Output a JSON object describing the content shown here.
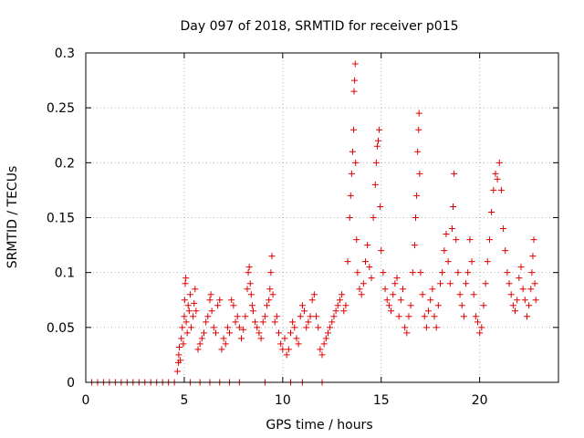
{
  "chart_data": {
    "type": "scatter",
    "title": "Day 097 of 2018, SRMTID for receiver p015",
    "xlabel": "GPS time / hours",
    "ylabel": "SRMTID / TECUs",
    "xlim": [
      0,
      24
    ],
    "ylim": [
      0,
      0.3
    ],
    "xticks": [
      0,
      5,
      10,
      15,
      20
    ],
    "xtick_labels": [
      "0",
      "5",
      "10",
      "15",
      "20"
    ],
    "yticks": [
      0,
      0.05,
      0.1,
      0.15,
      0.2,
      0.25,
      0.3
    ],
    "ytick_labels": [
      "0",
      "0.05",
      "0.1",
      "0.15",
      "0.2",
      "0.25",
      "0.3"
    ],
    "grid": true,
    "marker": "+",
    "color": "#e00000",
    "series": [
      {
        "name": "SRMTID",
        "points": [
          [
            0.3,
            0
          ],
          [
            0.6,
            0
          ],
          [
            0.9,
            0
          ],
          [
            1.2,
            0
          ],
          [
            1.5,
            0
          ],
          [
            1.8,
            0
          ],
          [
            2.1,
            0
          ],
          [
            2.4,
            0
          ],
          [
            2.7,
            0
          ],
          [
            3.0,
            0
          ],
          [
            3.3,
            0
          ],
          [
            3.6,
            0
          ],
          [
            3.9,
            0
          ],
          [
            4.2,
            0
          ],
          [
            4.5,
            0
          ],
          [
            5.3,
            0
          ],
          [
            5.8,
            0
          ],
          [
            6.3,
            0
          ],
          [
            6.8,
            0
          ],
          [
            7.3,
            0
          ],
          [
            7.8,
            0
          ],
          [
            9.1,
            0
          ],
          [
            10.4,
            0
          ],
          [
            11.0,
            0
          ],
          [
            12.0,
            0
          ],
          [
            4.65,
            0.01
          ],
          [
            4.7,
            0.018
          ],
          [
            4.72,
            0.025
          ],
          [
            4.75,
            0.032
          ],
          [
            4.8,
            0.02
          ],
          [
            4.85,
            0.04
          ],
          [
            4.9,
            0.05
          ],
          [
            4.95,
            0.035
          ],
          [
            5.0,
            0.06
          ],
          [
            5.02,
            0.075
          ],
          [
            5.05,
            0.09
          ],
          [
            5.08,
            0.095
          ],
          [
            5.1,
            0.055
          ],
          [
            5.15,
            0.045
          ],
          [
            5.2,
            0.07
          ],
          [
            5.25,
            0.065
          ],
          [
            5.3,
            0.08
          ],
          [
            5.35,
            0.05
          ],
          [
            5.45,
            0.06
          ],
          [
            5.5,
            0.072
          ],
          [
            5.55,
            0.085
          ],
          [
            5.6,
            0.065
          ],
          [
            5.7,
            0.03
          ],
          [
            5.8,
            0.035
          ],
          [
            5.9,
            0.04
          ],
          [
            6.0,
            0.045
          ],
          [
            6.1,
            0.055
          ],
          [
            6.2,
            0.06
          ],
          [
            6.3,
            0.075
          ],
          [
            6.35,
            0.08
          ],
          [
            6.4,
            0.065
          ],
          [
            6.5,
            0.05
          ],
          [
            6.6,
            0.045
          ],
          [
            6.7,
            0.07
          ],
          [
            6.8,
            0.075
          ],
          [
            6.9,
            0.03
          ],
          [
            7.0,
            0.04
          ],
          [
            7.1,
            0.035
          ],
          [
            7.2,
            0.05
          ],
          [
            7.3,
            0.045
          ],
          [
            7.4,
            0.075
          ],
          [
            7.5,
            0.07
          ],
          [
            7.6,
            0.055
          ],
          [
            7.7,
            0.06
          ],
          [
            7.8,
            0.05
          ],
          [
            7.9,
            0.04
          ],
          [
            8.0,
            0.048
          ],
          [
            8.1,
            0.06
          ],
          [
            8.2,
            0.085
          ],
          [
            8.25,
            0.1
          ],
          [
            8.3,
            0.105
          ],
          [
            8.35,
            0.09
          ],
          [
            8.4,
            0.08
          ],
          [
            8.45,
            0.07
          ],
          [
            8.5,
            0.065
          ],
          [
            8.6,
            0.055
          ],
          [
            8.7,
            0.05
          ],
          [
            8.8,
            0.045
          ],
          [
            8.9,
            0.04
          ],
          [
            9.0,
            0.055
          ],
          [
            9.1,
            0.06
          ],
          [
            9.2,
            0.07
          ],
          [
            9.3,
            0.075
          ],
          [
            9.35,
            0.085
          ],
          [
            9.4,
            0.1
          ],
          [
            9.45,
            0.115
          ],
          [
            9.5,
            0.08
          ],
          [
            9.6,
            0.055
          ],
          [
            9.7,
            0.06
          ],
          [
            9.8,
            0.045
          ],
          [
            9.9,
            0.035
          ],
          [
            10.0,
            0.03
          ],
          [
            10.1,
            0.04
          ],
          [
            10.2,
            0.025
          ],
          [
            10.3,
            0.03
          ],
          [
            10.4,
            0.045
          ],
          [
            10.5,
            0.055
          ],
          [
            10.6,
            0.05
          ],
          [
            10.7,
            0.04
          ],
          [
            10.8,
            0.035
          ],
          [
            10.9,
            0.06
          ],
          [
            11.0,
            0.07
          ],
          [
            11.1,
            0.065
          ],
          [
            11.2,
            0.05
          ],
          [
            11.3,
            0.055
          ],
          [
            11.4,
            0.06
          ],
          [
            11.5,
            0.075
          ],
          [
            11.6,
            0.08
          ],
          [
            11.7,
            0.06
          ],
          [
            11.8,
            0.05
          ],
          [
            11.9,
            0.03
          ],
          [
            12.0,
            0.025
          ],
          [
            12.1,
            0.035
          ],
          [
            12.2,
            0.04
          ],
          [
            12.3,
            0.045
          ],
          [
            12.4,
            0.05
          ],
          [
            12.5,
            0.055
          ],
          [
            12.6,
            0.06
          ],
          [
            12.7,
            0.065
          ],
          [
            12.8,
            0.07
          ],
          [
            12.9,
            0.075
          ],
          [
            13.0,
            0.08
          ],
          [
            13.1,
            0.065
          ],
          [
            13.2,
            0.07
          ],
          [
            13.3,
            0.11
          ],
          [
            13.4,
            0.15
          ],
          [
            13.45,
            0.17
          ],
          [
            13.5,
            0.19
          ],
          [
            13.55,
            0.21
          ],
          [
            13.6,
            0.23
          ],
          [
            13.62,
            0.265
          ],
          [
            13.65,
            0.275
          ],
          [
            13.68,
            0.29
          ],
          [
            13.7,
            0.2
          ],
          [
            13.75,
            0.13
          ],
          [
            13.8,
            0.1
          ],
          [
            13.9,
            0.085
          ],
          [
            14.0,
            0.08
          ],
          [
            14.1,
            0.09
          ],
          [
            14.2,
            0.11
          ],
          [
            14.3,
            0.125
          ],
          [
            14.4,
            0.105
          ],
          [
            14.5,
            0.095
          ],
          [
            14.6,
            0.15
          ],
          [
            14.7,
            0.18
          ],
          [
            14.75,
            0.2
          ],
          [
            14.8,
            0.215
          ],
          [
            14.85,
            0.22
          ],
          [
            14.9,
            0.23
          ],
          [
            14.95,
            0.16
          ],
          [
            15.0,
            0.12
          ],
          [
            15.1,
            0.1
          ],
          [
            15.2,
            0.085
          ],
          [
            15.3,
            0.075
          ],
          [
            15.4,
            0.07
          ],
          [
            15.5,
            0.065
          ],
          [
            15.6,
            0.08
          ],
          [
            15.7,
            0.09
          ],
          [
            15.8,
            0.095
          ],
          [
            15.9,
            0.06
          ],
          [
            16.0,
            0.075
          ],
          [
            16.1,
            0.085
          ],
          [
            16.2,
            0.05
          ],
          [
            16.3,
            0.045
          ],
          [
            16.4,
            0.06
          ],
          [
            16.5,
            0.07
          ],
          [
            16.6,
            0.1
          ],
          [
            16.7,
            0.125
          ],
          [
            16.75,
            0.15
          ],
          [
            16.8,
            0.17
          ],
          [
            16.85,
            0.21
          ],
          [
            16.9,
            0.23
          ],
          [
            16.92,
            0.245
          ],
          [
            16.95,
            0.19
          ],
          [
            17.0,
            0.1
          ],
          [
            17.1,
            0.08
          ],
          [
            17.2,
            0.06
          ],
          [
            17.3,
            0.05
          ],
          [
            17.4,
            0.065
          ],
          [
            17.5,
            0.075
          ],
          [
            17.6,
            0.085
          ],
          [
            17.7,
            0.06
          ],
          [
            17.8,
            0.05
          ],
          [
            17.9,
            0.07
          ],
          [
            18.0,
            0.09
          ],
          [
            18.1,
            0.1
          ],
          [
            18.2,
            0.12
          ],
          [
            18.3,
            0.135
          ],
          [
            18.4,
            0.11
          ],
          [
            18.5,
            0.09
          ],
          [
            18.6,
            0.14
          ],
          [
            18.65,
            0.16
          ],
          [
            18.7,
            0.19
          ],
          [
            18.8,
            0.13
          ],
          [
            18.9,
            0.1
          ],
          [
            19.0,
            0.08
          ],
          [
            19.1,
            0.07
          ],
          [
            19.2,
            0.06
          ],
          [
            19.3,
            0.09
          ],
          [
            19.4,
            0.1
          ],
          [
            19.5,
            0.13
          ],
          [
            19.6,
            0.11
          ],
          [
            19.7,
            0.08
          ],
          [
            19.8,
            0.06
          ],
          [
            19.9,
            0.055
          ],
          [
            20.0,
            0.045
          ],
          [
            20.1,
            0.05
          ],
          [
            20.2,
            0.07
          ],
          [
            20.3,
            0.09
          ],
          [
            20.4,
            0.11
          ],
          [
            20.5,
            0.13
          ],
          [
            20.6,
            0.155
          ],
          [
            20.7,
            0.175
          ],
          [
            20.8,
            0.19
          ],
          [
            20.9,
            0.185
          ],
          [
            21.0,
            0.2
          ],
          [
            21.1,
            0.175
          ],
          [
            21.2,
            0.14
          ],
          [
            21.3,
            0.12
          ],
          [
            21.4,
            0.1
          ],
          [
            21.5,
            0.09
          ],
          [
            21.6,
            0.08
          ],
          [
            21.7,
            0.07
          ],
          [
            21.8,
            0.065
          ],
          [
            21.9,
            0.075
          ],
          [
            22.0,
            0.095
          ],
          [
            22.1,
            0.105
          ],
          [
            22.2,
            0.085
          ],
          [
            22.3,
            0.075
          ],
          [
            22.4,
            0.06
          ],
          [
            22.5,
            0.07
          ],
          [
            22.6,
            0.085
          ],
          [
            22.65,
            0.1
          ],
          [
            22.7,
            0.115
          ],
          [
            22.75,
            0.13
          ],
          [
            22.8,
            0.09
          ],
          [
            22.85,
            0.075
          ]
        ]
      }
    ]
  }
}
